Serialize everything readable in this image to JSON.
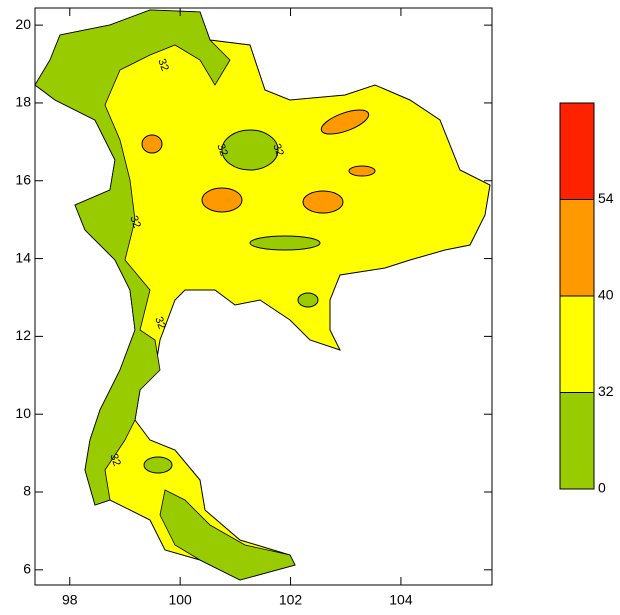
{
  "chart_data": {
    "type": "map",
    "xlim": [
      97.37,
      105.65
    ],
    "ylim": [
      5.61,
      20.44
    ],
    "xticks": [
      98,
      100,
      102,
      104
    ],
    "yticks": [
      6,
      8,
      10,
      12,
      14,
      16,
      18,
      20
    ],
    "contour_labels": [
      "32",
      "32",
      "32",
      "32",
      "32",
      "32"
    ],
    "colorbar": {
      "levels": [
        0,
        32,
        40,
        54
      ],
      "colors": [
        "#99cc00",
        "#ffff00",
        "#ff9900",
        "#ff2200"
      ]
    }
  }
}
